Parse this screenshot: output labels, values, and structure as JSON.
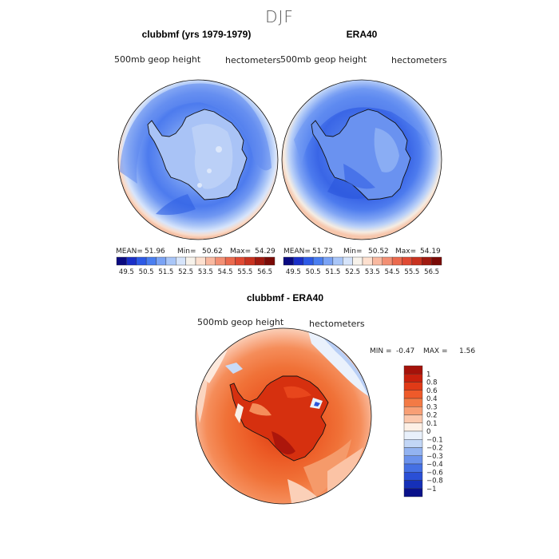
{
  "figure": {
    "title": "DJF"
  },
  "panels": [
    {
      "title": "clubbmf (yrs 1979-1979)",
      "variable": "500mb geop height",
      "units": "hectometers",
      "stats": {
        "mean_label": "MEAN=",
        "mean": "51.96",
        "min_label": "Min=",
        "min": "50.62",
        "max_label": "Max=",
        "max": "54.29"
      }
    },
    {
      "title": "ERA40",
      "variable": "500mb geop height",
      "units": "hectometers",
      "stats": {
        "mean_label": "MEAN=",
        "mean": "51.73",
        "min_label": "Min=",
        "min": "50.52",
        "max_label": "Max=",
        "max": "54.19"
      }
    },
    {
      "title": "clubbmf - ERA40",
      "variable": "500mb geop height",
      "units": "hectometers",
      "stats": {
        "min_label": "MIN =",
        "min": "-0.47",
        "max_label": "MAX =",
        "max": "1.56"
      }
    }
  ],
  "chart_data": [
    {
      "type": "heatmap",
      "title": "clubbmf (yrs 1979-1979)",
      "projection": "south polar stereographic",
      "colorbar": {
        "labels": [
          "49.5",
          "50.5",
          "51.5",
          "52.5",
          "53.5",
          "54.5",
          "55.5",
          "56.5"
        ],
        "colors": [
          "#0a0a80",
          "#1a2fc8",
          "#2d5ae6",
          "#4a7ef0",
          "#7aa3f5",
          "#a9c6f8",
          "#d6e4fa",
          "#f7f2ea",
          "#fde0cf",
          "#f9b9a0",
          "#f39074",
          "#eb6a4e",
          "#e04a33",
          "#c8321f",
          "#a01a10",
          "#7a0a06"
        ]
      }
    },
    {
      "type": "heatmap",
      "title": "ERA40",
      "projection": "south polar stereographic",
      "colorbar": {
        "labels": [
          "49.5",
          "50.5",
          "51.5",
          "52.5",
          "53.5",
          "54.5",
          "55.5",
          "56.5"
        ],
        "colors": [
          "#0a0a80",
          "#1a2fc8",
          "#2d5ae6",
          "#4a7ef0",
          "#7aa3f5",
          "#a9c6f8",
          "#d6e4fa",
          "#f7f2ea",
          "#fde0cf",
          "#f9b9a0",
          "#f39074",
          "#eb6a4e",
          "#e04a33",
          "#c8321f",
          "#a01a10",
          "#7a0a06"
        ]
      }
    },
    {
      "type": "heatmap",
      "title": "clubbmf - ERA40",
      "projection": "south polar stereographic",
      "colorbar": {
        "levels": [
          "1",
          "0.8",
          "0.6",
          "0.4",
          "0.3",
          "0.2",
          "0.1",
          "0",
          "−0.1",
          "−0.2",
          "−0.3",
          "−0.4",
          "−0.6",
          "−0.8",
          "−1"
        ],
        "colors": [
          "#a5120a",
          "#c8200d",
          "#e03a17",
          "#ee5a2a",
          "#f37a45",
          "#f89f75",
          "#fbc8ad",
          "#fdf0e6",
          "#e8f0fb",
          "#c2d6f6",
          "#93b3f1",
          "#6b92ec",
          "#4570e4",
          "#2a4fd6",
          "#1530b8",
          "#0a118a"
        ]
      }
    }
  ]
}
